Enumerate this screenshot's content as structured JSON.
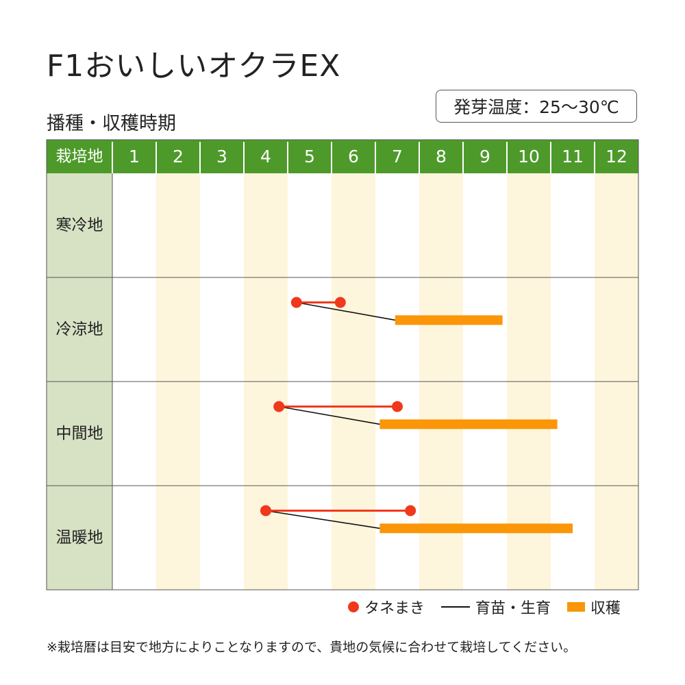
{
  "title": "F1おいしいオクラEX",
  "subtitle": "播種・収穫時期",
  "temperature": "発芽温度：25〜30℃",
  "colors": {
    "header_green": "#4d9a2a",
    "region_cell": "#d7e1c4",
    "stripe": "#fdf5dc",
    "sowing": "#f0381c",
    "growing": "#111111",
    "harvest": "#fa9608"
  },
  "chart_data": {
    "type": "table",
    "header_label": "栽培地",
    "months": [
      "1",
      "2",
      "3",
      "4",
      "5",
      "6",
      "7",
      "8",
      "9",
      "10",
      "11",
      "12"
    ],
    "rows": [
      {
        "region": "寒冷地",
        "sowing": null,
        "harvest": null
      },
      {
        "region": "冷涼地",
        "sowing": [
          5.2,
          6.2
        ],
        "harvest": [
          7.45,
          9.9
        ]
      },
      {
        "region": "中間地",
        "sowing": [
          4.8,
          7.5
        ],
        "harvest": [
          7.1,
          11.15
        ]
      },
      {
        "region": "温暖地",
        "sowing": [
          4.5,
          7.8
        ],
        "harvest": [
          7.1,
          11.5
        ]
      }
    ],
    "legend": [
      "タネまき",
      "育苗・生育",
      "収穫"
    ]
  },
  "note": "※栽培暦は目安で地方によりことなりますので、貴地の気候に合わせて栽培してください。"
}
